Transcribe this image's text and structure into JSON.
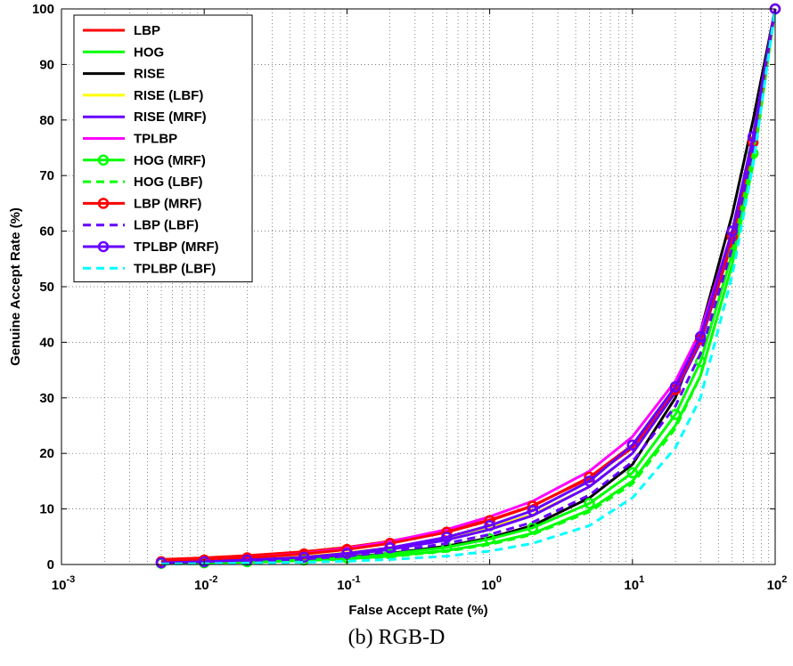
{
  "chart_data": {
    "type": "line",
    "title": "",
    "xlabel": "False Accept Rate (%)",
    "ylabel": "Genuine Accept Rate (%)",
    "xscale": "log",
    "xlim": [
      0.001,
      100
    ],
    "ylim": [
      0,
      100
    ],
    "x_tick_labels": [
      {
        "base": "10",
        "exp": "-3"
      },
      {
        "base": "10",
        "exp": "-2"
      },
      {
        "base": "10",
        "exp": "-1"
      },
      {
        "base": "10",
        "exp": "0"
      },
      {
        "base": "10",
        "exp": "1"
      },
      {
        "base": "10",
        "exp": "2"
      }
    ],
    "y_ticks": [
      0,
      10,
      20,
      30,
      40,
      50,
      60,
      70,
      80,
      90,
      100
    ],
    "y_tick_labels": [
      "0",
      "10",
      "20",
      "30",
      "40",
      "50",
      "60",
      "70",
      "80",
      "90",
      "100"
    ],
    "grid": true,
    "legend_position": "top-left",
    "series": [
      {
        "name": "LBP",
        "color": "#ff0000",
        "style": "solid",
        "marker": "none",
        "x": [
          0.005,
          0.01,
          0.02,
          0.05,
          0.1,
          0.2,
          0.5,
          1,
          2,
          5,
          10,
          20,
          30,
          50,
          70,
          100
        ],
        "y": [
          0.9,
          1.2,
          1.6,
          2.3,
          3.1,
          4.2,
          6.1,
          8.0,
          10.6,
          15.5,
          21.0,
          31.0,
          40.0,
          58.0,
          75.0,
          100
        ]
      },
      {
        "name": "HOG",
        "color": "#00ff00",
        "style": "solid",
        "marker": "none",
        "x": [
          0.005,
          0.01,
          0.02,
          0.05,
          0.1,
          0.2,
          0.5,
          1,
          2,
          5,
          10,
          20,
          30,
          50,
          70,
          100
        ],
        "y": [
          0.2,
          0.3,
          0.4,
          0.7,
          1.0,
          1.5,
          2.5,
          3.8,
          5.6,
          9.8,
          15.0,
          25.0,
          34.0,
          54.0,
          72.0,
          100
        ]
      },
      {
        "name": "RISE",
        "color": "#000000",
        "style": "solid",
        "marker": "none",
        "x": [
          0.005,
          0.01,
          0.02,
          0.05,
          0.1,
          0.2,
          0.5,
          1,
          2,
          5,
          10,
          20,
          30,
          50,
          70,
          100
        ],
        "y": [
          0.3,
          0.4,
          0.6,
          0.9,
          1.3,
          2.0,
          3.3,
          4.8,
          7.0,
          12.0,
          18.0,
          30.0,
          42.0,
          63.0,
          80.0,
          100
        ]
      },
      {
        "name": "RISE (LBF)",
        "color": "#ffff00",
        "style": "solid",
        "marker": "none",
        "x": [
          0.005,
          0.01,
          0.02,
          0.05,
          0.1,
          0.2,
          0.5,
          1,
          2,
          5,
          10,
          20,
          30,
          50,
          70,
          100
        ],
        "y": [
          0.4,
          0.6,
          0.9,
          1.4,
          2.1,
          3.0,
          4.7,
          6.6,
          9.0,
          14.0,
          20.0,
          31.0,
          41.0,
          60.0,
          77.0,
          100
        ]
      },
      {
        "name": "RISE (MRF)",
        "color": "#6600ff",
        "style": "solid",
        "marker": "none",
        "x": [
          0.005,
          0.01,
          0.02,
          0.05,
          0.1,
          0.2,
          0.5,
          1,
          2,
          5,
          10,
          20,
          30,
          50,
          70,
          100
        ],
        "y": [
          0.3,
          0.5,
          0.7,
          1.2,
          1.8,
          2.7,
          4.4,
          6.3,
          8.8,
          14.0,
          20.0,
          31.0,
          40.0,
          59.0,
          76.0,
          100
        ]
      },
      {
        "name": "TPLBP",
        "color": "#ff00ff",
        "style": "solid",
        "marker": "none",
        "x": [
          0.005,
          0.01,
          0.02,
          0.05,
          0.1,
          0.2,
          0.5,
          1,
          2,
          5,
          10,
          20,
          30,
          50,
          70,
          100
        ],
        "y": [
          0.5,
          0.8,
          1.2,
          2.0,
          2.9,
          4.1,
          6.3,
          8.6,
          11.4,
          16.8,
          23.0,
          33.0,
          42.0,
          60.0,
          77.0,
          100
        ]
      },
      {
        "name": "HOG (MRF)",
        "color": "#00ff00",
        "style": "solid",
        "marker": "circle",
        "x": [
          0.005,
          0.01,
          0.02,
          0.05,
          0.1,
          0.2,
          0.5,
          1,
          2,
          5,
          10,
          20,
          30,
          50,
          70,
          100
        ],
        "y": [
          0.2,
          0.3,
          0.5,
          0.8,
          1.2,
          1.9,
          3.1,
          4.6,
          6.6,
          11.0,
          16.5,
          27.0,
          36.5,
          56.0,
          74.0,
          100
        ]
      },
      {
        "name": "HOG (LBF)",
        "color": "#00ff00",
        "style": "dashed",
        "marker": "none",
        "x": [
          0.005,
          0.01,
          0.02,
          0.05,
          0.1,
          0.2,
          0.5,
          1,
          2,
          5,
          10,
          20,
          30,
          50,
          70,
          100
        ],
        "y": [
          0.2,
          0.3,
          0.4,
          0.6,
          0.9,
          1.4,
          2.4,
          3.6,
          5.4,
          9.5,
          14.5,
          24.5,
          34.0,
          54.0,
          73.0,
          100
        ]
      },
      {
        "name": "LBP (MRF)",
        "color": "#ff0000",
        "style": "solid",
        "marker": "circle",
        "x": [
          0.005,
          0.01,
          0.02,
          0.05,
          0.1,
          0.2,
          0.5,
          1,
          2,
          5,
          10,
          20,
          30,
          50,
          70,
          100
        ],
        "y": [
          0.5,
          0.8,
          1.2,
          1.9,
          2.7,
          3.8,
          5.8,
          7.9,
          10.5,
          15.7,
          21.5,
          31.5,
          40.5,
          59.0,
          76.0,
          100
        ]
      },
      {
        "name": "LBP (LBF)",
        "color": "#6600ff",
        "style": "dashed",
        "marker": "none",
        "x": [
          0.005,
          0.01,
          0.02,
          0.05,
          0.1,
          0.2,
          0.5,
          1,
          2,
          5,
          10,
          20,
          30,
          50,
          70,
          100
        ],
        "y": [
          0.3,
          0.4,
          0.6,
          1.0,
          1.5,
          2.3,
          3.8,
          5.4,
          7.6,
          12.5,
          18.5,
          28.5,
          38.0,
          57.0,
          75.0,
          100
        ]
      },
      {
        "name": "TPLBP (MRF)",
        "color": "#6600ff",
        "style": "solid",
        "marker": "circle",
        "x": [
          0.005,
          0.01,
          0.02,
          0.05,
          0.1,
          0.2,
          0.5,
          1,
          2,
          5,
          10,
          20,
          30,
          50,
          70,
          100
        ],
        "y": [
          0.3,
          0.5,
          0.8,
          1.3,
          2.0,
          3.0,
          4.9,
          7.0,
          9.7,
          15.0,
          21.5,
          32.0,
          41.0,
          60.0,
          77.0,
          100
        ]
      },
      {
        "name": "TPLBP (LBF)",
        "color": "#00ffff",
        "style": "dashed",
        "marker": "none",
        "x": [
          0.005,
          0.01,
          0.02,
          0.05,
          0.1,
          0.2,
          0.5,
          1,
          2,
          5,
          10,
          20,
          30,
          50,
          70,
          100
        ],
        "y": [
          0.1,
          0.15,
          0.25,
          0.4,
          0.6,
          0.9,
          1.5,
          2.4,
          3.8,
          7.0,
          12.0,
          21.0,
          30.0,
          52.0,
          72.0,
          100
        ]
      }
    ]
  },
  "caption": "(b) RGB-D"
}
